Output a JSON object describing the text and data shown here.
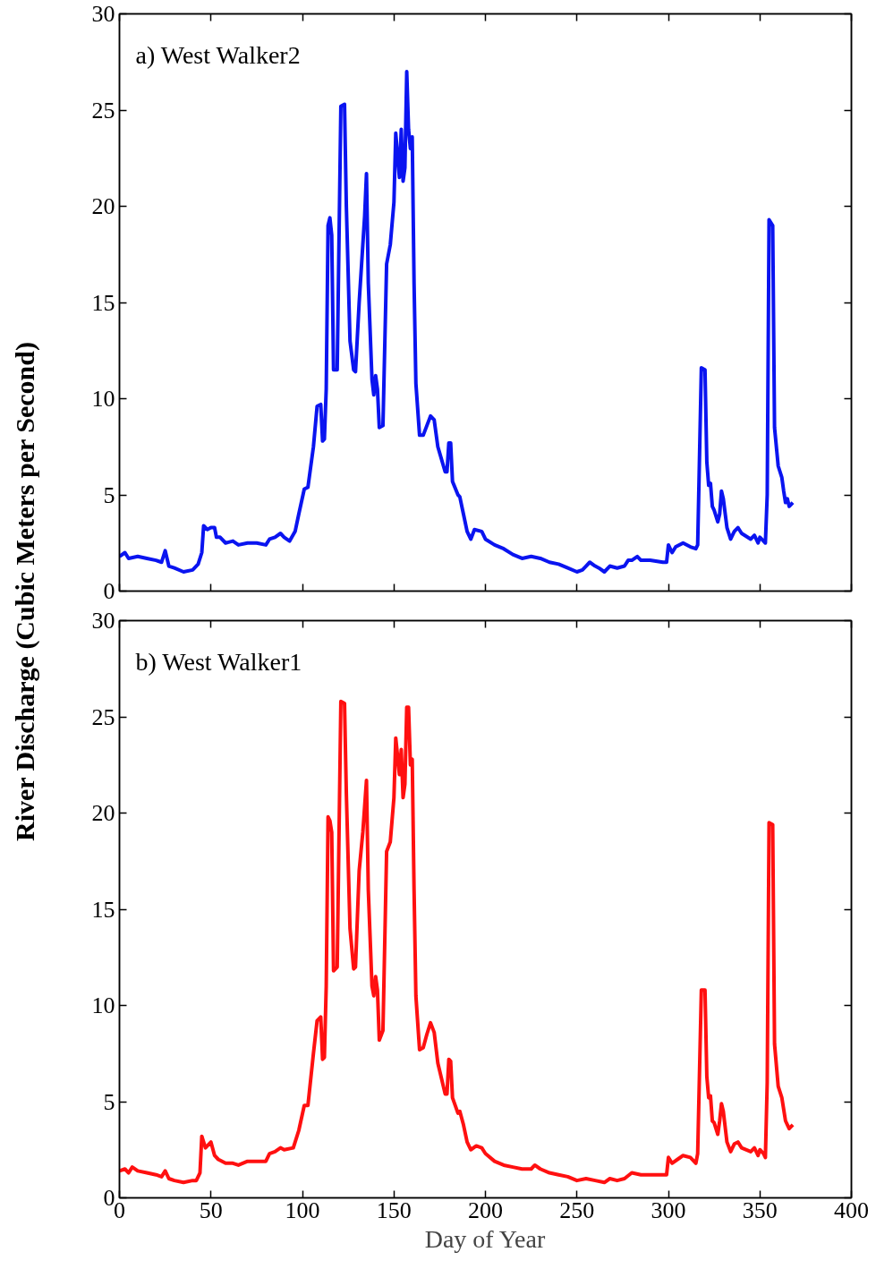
{
  "chart_data": [
    {
      "type": "line",
      "title": "a) West Walker2",
      "ylabel": "River Discharge (Cubic Meters per Second)",
      "xlim": [
        0,
        400
      ],
      "ylim": [
        0,
        30
      ],
      "xticks": [
        0,
        50,
        100,
        150,
        200,
        250,
        300,
        350,
        400
      ],
      "yticks": [
        0,
        5,
        10,
        15,
        20,
        25,
        30
      ],
      "tick_labels": "y",
      "grid": false,
      "series": [
        {
          "color": "#0a14f0",
          "x": [
            0,
            3,
            5,
            10,
            15,
            20,
            23,
            25,
            27,
            30,
            35,
            40,
            43,
            45,
            46,
            48,
            50,
            52,
            53,
            55,
            58,
            62,
            65,
            70,
            75,
            80,
            82,
            85,
            88,
            90,
            93,
            96,
            98,
            101,
            103,
            106,
            108,
            110,
            111,
            112,
            113,
            114,
            115,
            116,
            117,
            119,
            121,
            123,
            124,
            126,
            128,
            129,
            131,
            133,
            134,
            135,
            136,
            138,
            139,
            140,
            141,
            142,
            144,
            146,
            148,
            150,
            151,
            153,
            154,
            155,
            156,
            157,
            158,
            159,
            160,
            161,
            162,
            164,
            166,
            168,
            170,
            172,
            174,
            178,
            179,
            180,
            181,
            182,
            185,
            186,
            188,
            190,
            192,
            194,
            198,
            200,
            205,
            210,
            215,
            220,
            225,
            230,
            235,
            240,
            245,
            250,
            253,
            255,
            257,
            260,
            262,
            265,
            268,
            272,
            276,
            278,
            280,
            283,
            285,
            290,
            297,
            299,
            300,
            302,
            304,
            308,
            312,
            315,
            316,
            318,
            320,
            321,
            322,
            323,
            324,
            325,
            327,
            328,
            329,
            330,
            332,
            334,
            336,
            338,
            340,
            345,
            347,
            349,
            350,
            352,
            353,
            354,
            355,
            357,
            358,
            360,
            362,
            363,
            364,
            365,
            366,
            368
          ],
          "values": [
            1.8,
            2.0,
            1.7,
            1.8,
            1.7,
            1.6,
            1.5,
            2.1,
            1.3,
            1.2,
            1.0,
            1.1,
            1.4,
            2.0,
            3.4,
            3.2,
            3.3,
            3.3,
            2.8,
            2.8,
            2.5,
            2.6,
            2.4,
            2.5,
            2.5,
            2.4,
            2.7,
            2.8,
            3.0,
            2.8,
            2.6,
            3.1,
            4.0,
            5.3,
            5.4,
            7.5,
            9.6,
            9.7,
            7.8,
            7.9,
            10.5,
            19.0,
            19.4,
            18.5,
            11.5,
            11.5,
            25.2,
            25.3,
            20,
            13,
            11.5,
            11.4,
            15,
            18,
            19.5,
            21.7,
            16,
            11,
            10.2,
            11.2,
            10.5,
            8.5,
            8.6,
            17,
            18,
            20.2,
            23.8,
            21.5,
            24,
            21.3,
            22,
            27,
            24,
            23,
            23.6,
            16,
            10.8,
            8.1,
            8.1,
            8.6,
            9.1,
            8.9,
            7.5,
            6.2,
            6.2,
            7.7,
            7.7,
            5.7,
            5.0,
            4.9,
            4.0,
            3.1,
            2.7,
            3.2,
            3.1,
            2.7,
            2.4,
            2.2,
            1.9,
            1.7,
            1.8,
            1.7,
            1.5,
            1.4,
            1.2,
            1.0,
            1.1,
            1.3,
            1.5,
            1.3,
            1.2,
            1.0,
            1.3,
            1.2,
            1.3,
            1.6,
            1.6,
            1.8,
            1.6,
            1.6,
            1.5,
            1.5,
            2.4,
            2.0,
            2.3,
            2.5,
            2.3,
            2.2,
            2.4,
            11.6,
            11.5,
            6.7,
            5.5,
            5.6,
            4.4,
            4.2,
            3.6,
            4.0,
            5.2,
            4.8,
            3.3,
            2.7,
            3.1,
            3.3,
            3.0,
            2.7,
            2.9,
            2.5,
            2.8,
            2.6,
            2.5,
            5.0,
            19.3,
            19.0,
            8.5,
            6.5,
            5.9,
            5.2,
            4.6,
            4.8,
            4.4,
            4.6
          ]
        }
      ]
    },
    {
      "type": "line",
      "title": "b) West Walker1",
      "xlabel": "Day of Year",
      "xlim": [
        0,
        400
      ],
      "ylim": [
        0,
        30
      ],
      "xticks": [
        0,
        50,
        100,
        150,
        200,
        250,
        300,
        350,
        400
      ],
      "yticks": [
        0,
        5,
        10,
        15,
        20,
        25,
        30
      ],
      "grid": false,
      "series": [
        {
          "color": "#ff1010",
          "x": [
            0,
            3,
            5,
            7,
            10,
            15,
            20,
            23,
            25,
            27,
            30,
            35,
            40,
            42,
            44,
            45,
            47,
            50,
            52,
            54,
            58,
            62,
            65,
            70,
            75,
            80,
            82,
            85,
            88,
            90,
            95,
            98,
            101,
            103,
            106,
            108,
            110,
            111,
            112,
            113,
            114,
            115,
            116,
            117,
            119,
            121,
            123,
            124,
            126,
            128,
            129,
            131,
            133,
            135,
            136,
            138,
            139,
            140,
            141,
            142,
            144,
            146,
            148,
            150,
            151,
            153,
            154,
            155,
            156,
            157,
            158,
            159,
            160,
            161,
            162,
            164,
            166,
            168,
            170,
            172,
            174,
            178,
            179,
            180,
            181,
            182,
            185,
            186,
            188,
            190,
            192,
            195,
            198,
            200,
            205,
            210,
            215,
            220,
            225,
            227,
            230,
            235,
            240,
            245,
            250,
            255,
            260,
            265,
            268,
            272,
            276,
            280,
            285,
            290,
            297,
            299,
            300,
            302,
            305,
            308,
            312,
            315,
            316,
            318,
            320,
            321,
            322,
            323,
            324,
            325,
            327,
            328,
            329,
            330,
            332,
            334,
            336,
            338,
            340,
            345,
            347,
            349,
            350,
            352,
            353,
            354,
            355,
            357,
            358,
            360,
            362,
            363,
            364,
            365,
            366,
            368
          ],
          "values": [
            1.4,
            1.5,
            1.3,
            1.6,
            1.4,
            1.3,
            1.2,
            1.1,
            1.4,
            1.0,
            0.9,
            0.8,
            0.9,
            0.9,
            1.3,
            3.2,
            2.6,
            2.9,
            2.2,
            2.0,
            1.8,
            1.8,
            1.7,
            1.9,
            1.9,
            1.9,
            2.3,
            2.4,
            2.6,
            2.5,
            2.6,
            3.5,
            4.8,
            4.8,
            7.5,
            9.2,
            9.4,
            7.2,
            7.3,
            11,
            19.8,
            19.6,
            19,
            11.8,
            12,
            25.8,
            25.7,
            21,
            14,
            11.9,
            12,
            17,
            19,
            21.7,
            16,
            11,
            10.5,
            11.5,
            10.8,
            8.2,
            8.7,
            18,
            18.5,
            20.8,
            23.9,
            22,
            23.3,
            20.8,
            21.5,
            25.5,
            25.5,
            22.5,
            22.8,
            16,
            10.5,
            7.7,
            7.8,
            8.5,
            9.1,
            8.6,
            7.0,
            5.4,
            5.4,
            7.2,
            7.1,
            5.2,
            4.4,
            4.5,
            3.8,
            2.9,
            2.5,
            2.7,
            2.6,
            2.3,
            1.9,
            1.7,
            1.6,
            1.5,
            1.5,
            1.7,
            1.5,
            1.3,
            1.2,
            1.1,
            0.9,
            1.0,
            0.9,
            0.8,
            1.0,
            0.9,
            1.0,
            1.3,
            1.2,
            1.2,
            1.2,
            1.2,
            2.1,
            1.8,
            2.0,
            2.2,
            2.1,
            1.8,
            2.3,
            10.8,
            10.8,
            6.3,
            5.2,
            5.3,
            4.0,
            3.9,
            3.3,
            4.0,
            4.9,
            4.5,
            2.9,
            2.4,
            2.8,
            2.9,
            2.6,
            2.4,
            2.6,
            2.2,
            2.5,
            2.3,
            2.1,
            6.0,
            19.5,
            19.4,
            8.0,
            5.8,
            5.2,
            4.6,
            4.0,
            3.8,
            3.6,
            3.8
          ]
        }
      ]
    }
  ]
}
